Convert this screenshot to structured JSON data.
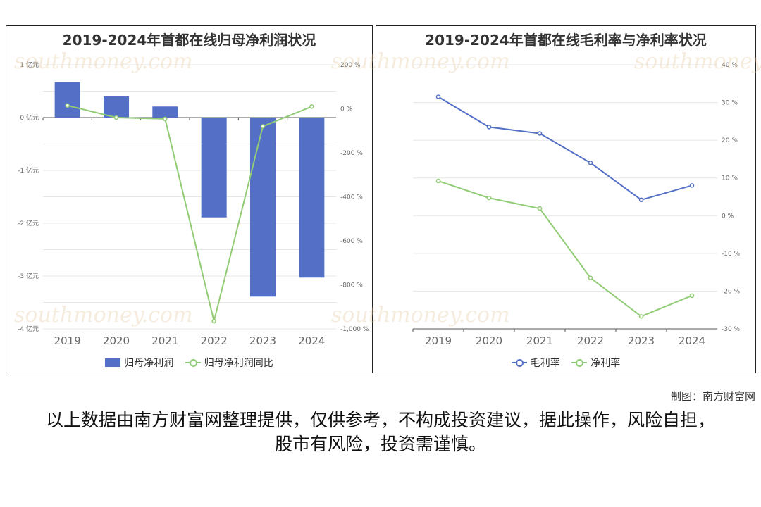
{
  "charts": {
    "left": {
      "title": "2019-2024年首都在线归母净利润状况",
      "legend": {
        "bar": "归母净利润",
        "line": "归母净利润同比"
      },
      "y_left_ticks": [
        "1 亿元",
        "0 亿元",
        "-1 亿元",
        "-2 亿元",
        "-3 亿元",
        "-4 亿元"
      ],
      "y_right_ticks": [
        "200 %",
        "0 %",
        "-200 %",
        "-400 %",
        "-600 %",
        "-800 %",
        "-1,000 %"
      ]
    },
    "right": {
      "title": "2019-2024年首都在线毛利率与净利率状况",
      "legend": {
        "gross": "毛利率",
        "net": "净利率"
      },
      "y_right_ticks": [
        "40 %",
        "30 %",
        "20 %",
        "10 %",
        "0 %",
        "-10 %",
        "-20 %",
        "-30 %"
      ]
    }
  },
  "chart_data": [
    {
      "type": "bar",
      "title": "2019-2024年首都在线归母净利润状况",
      "categories": [
        "2019",
        "2020",
        "2021",
        "2022",
        "2023",
        "2024"
      ],
      "ylim_left": [
        -4,
        1
      ],
      "ylim_right": [
        -1000,
        200
      ],
      "series": [
        {
          "name": "归母净利润",
          "type": "bar",
          "axis": "left",
          "unit": "亿元",
          "values": [
            0.67,
            0.4,
            0.21,
            -1.89,
            -3.39,
            -3.03
          ]
        },
        {
          "name": "归母净利润同比",
          "type": "line",
          "axis": "right",
          "unit": "%",
          "values": [
            15,
            -40,
            -46,
            -965,
            -80,
            10
          ]
        }
      ],
      "colors": {
        "bar": "#5470c6",
        "line": "#91cc75"
      },
      "legend_position": "bottom",
      "grid": true
    },
    {
      "type": "line",
      "title": "2019-2024年首都在线毛利率与净利率状况",
      "categories": [
        "2019",
        "2020",
        "2021",
        "2022",
        "2023",
        "2024"
      ],
      "ylim": [
        -30,
        40
      ],
      "unit": "%",
      "series": [
        {
          "name": "毛利率",
          "values": [
            31.5,
            23.5,
            21.8,
            14.0,
            4.2,
            8.0
          ]
        },
        {
          "name": "净利率",
          "values": [
            9.2,
            4.7,
            1.9,
            -16.5,
            -26.7,
            -21.2
          ]
        }
      ],
      "colors": {
        "gross": "#5470c6",
        "net": "#91cc75"
      },
      "legend_position": "bottom",
      "grid": true
    }
  ],
  "footer": {
    "credit": "制图：南方财富网",
    "disclaimer": "以上数据由南方财富网整理提供，仅供参考，不构成投资建议，据此操作，风险自担，股市有风险，投资需谨慎。"
  },
  "watermark": {
    "cn": "南方财富网",
    "en": "southmoney.com"
  }
}
